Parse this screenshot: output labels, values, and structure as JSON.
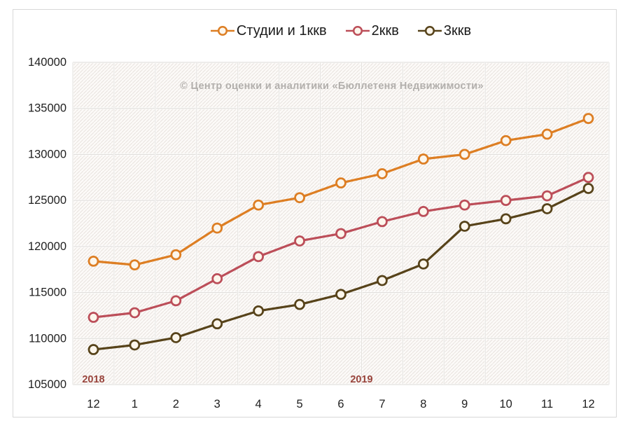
{
  "watermark": "© Центр оценки и аналитики «Бюллетеня Недвижимости»",
  "watermark_color": "#B2AFAC",
  "chart_data": {
    "type": "line",
    "title": "",
    "xlabel": "",
    "ylabel": "",
    "x_categories": [
      "12",
      "1",
      "2",
      "3",
      "4",
      "5",
      "6",
      "7",
      "8",
      "9",
      "10",
      "11",
      "12"
    ],
    "year_annotations": [
      {
        "text": "2018",
        "span": [
          0,
          0
        ]
      },
      {
        "text": "2019",
        "span": [
          1,
          12
        ]
      }
    ],
    "year_label_color": "#99443C",
    "ylim": [
      105000,
      140000
    ],
    "yticks": [
      105000,
      110000,
      115000,
      120000,
      125000,
      130000,
      135000,
      140000
    ],
    "grid": true,
    "legend_position": "top",
    "tick_label_color": "#1F1F1F",
    "marker_fill": "#FCF6EC",
    "series": [
      {
        "name": "Студии и 1ккв",
        "color": "#DD7E23",
        "values": [
          118400,
          118000,
          119100,
          122000,
          124500,
          125300,
          126900,
          127900,
          129500,
          130000,
          131500,
          132200,
          133900
        ]
      },
      {
        "name": "2ккв",
        "color": "#BC4E59",
        "values": [
          112300,
          112800,
          114100,
          116500,
          118900,
          120600,
          121400,
          122700,
          123800,
          124500,
          125000,
          125500,
          127500
        ]
      },
      {
        "name": "3ккв",
        "color": "#57431A",
        "values": [
          108800,
          109300,
          110100,
          111600,
          113000,
          113700,
          114800,
          116300,
          118100,
          122200,
          123000,
          124100,
          126300
        ]
      }
    ]
  }
}
